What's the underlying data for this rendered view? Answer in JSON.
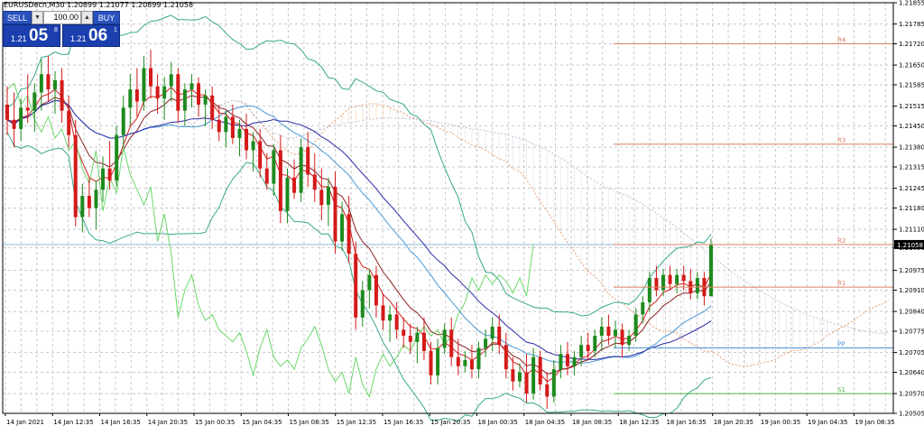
{
  "chart_title": "EURUSDecn,M30  1.20899 1.21077 1.20899 1.21058",
  "trade_panel": {
    "sell_label": "SELL",
    "buy_label": "BUY",
    "lot": "100.00",
    "sell_price": {
      "small": "1.21",
      "big": "05",
      "sup": "8"
    },
    "buy_price": {
      "small": "1.21",
      "big": "06",
      "sup": "1"
    }
  },
  "current_price_label": "1.21058",
  "chart_data": {
    "type": "candlestick",
    "symbol": "EURUSDecn",
    "timeframe": "M30",
    "ylim": [
      1.20505,
      1.21855
    ],
    "y_ticks": [
      "1.21855",
      "1.21785",
      "1.21720",
      "1.21650",
      "1.21585",
      "1.21515",
      "1.21450",
      "1.21380",
      "1.21315",
      "1.21245",
      "1.21180",
      "1.21110",
      "1.21050",
      "1.20975",
      "1.20910",
      "1.20840",
      "1.20775",
      "1.20705",
      "1.20640",
      "1.20570",
      "1.20505"
    ],
    "x_ticks": [
      "14 Jan 2021",
      "14 Jan 12:35",
      "14 Jan 16:35",
      "14 Jan 20:35",
      "15 Jan 00:35",
      "15 Jan 04:35",
      "15 Jan 08:35",
      "15 Jan 12:35",
      "15 Jan 16:35",
      "15 Jan 20:35",
      "18 Jan 00:35",
      "18 Jan 04:35",
      "18 Jan 08:35",
      "18 Jan 12:35",
      "18 Jan 16:35",
      "18 Jan 20:35",
      "19 Jan 00:35",
      "19 Jan 04:35",
      "19 Jan 08:35"
    ],
    "pivots": [
      {
        "name": "R4",
        "value": 1.2172
      },
      {
        "name": "R3",
        "value": 1.2139
      },
      {
        "name": "R2",
        "value": 1.2106
      },
      {
        "name": "R1",
        "value": 1.2092
      },
      {
        "name": "PP",
        "value": 1.2072
      },
      {
        "name": "S1",
        "value": 1.2057
      }
    ],
    "candles": [
      [
        1.2152,
        1.2158,
        1.2142,
        1.2147
      ],
      [
        1.2147,
        1.2156,
        1.2138,
        1.2144
      ],
      [
        1.2144,
        1.2154,
        1.214,
        1.2151
      ],
      [
        1.2151,
        1.2162,
        1.2146,
        1.215
      ],
      [
        1.215,
        1.2159,
        1.2143,
        1.2156
      ],
      [
        1.2156,
        1.2167,
        1.215,
        1.2162
      ],
      [
        1.2162,
        1.2168,
        1.2153,
        1.2157
      ],
      [
        1.2157,
        1.2163,
        1.2149,
        1.216
      ],
      [
        1.216,
        1.2164,
        1.2146,
        1.215
      ],
      [
        1.215,
        1.2155,
        1.2138,
        1.2142
      ],
      [
        1.2142,
        1.2147,
        1.2112,
        1.2115
      ],
      [
        1.2115,
        1.2126,
        1.211,
        1.2122
      ],
      [
        1.2122,
        1.2128,
        1.2115,
        1.2118
      ],
      [
        1.2118,
        1.2127,
        1.2111,
        1.2124
      ],
      [
        1.2124,
        1.2135,
        1.212,
        1.2131
      ],
      [
        1.2131,
        1.214,
        1.2124,
        1.2127
      ],
      [
        1.2127,
        1.2145,
        1.2125,
        1.2142
      ],
      [
        1.2142,
        1.2155,
        1.2138,
        1.2151
      ],
      [
        1.2151,
        1.2162,
        1.2145,
        1.2157
      ],
      [
        1.2157,
        1.2164,
        1.2148,
        1.2153
      ],
      [
        1.2153,
        1.2168,
        1.215,
        1.2164
      ],
      [
        1.2164,
        1.217,
        1.2154,
        1.2158
      ],
      [
        1.2158,
        1.2162,
        1.2149,
        1.2154
      ],
      [
        1.2154,
        1.2161,
        1.2147,
        1.2158
      ],
      [
        1.2158,
        1.2166,
        1.2153,
        1.2162
      ],
      [
        1.2162,
        1.2164,
        1.2146,
        1.215
      ],
      [
        1.215,
        1.2159,
        1.2145,
        1.2157
      ],
      [
        1.2157,
        1.2162,
        1.2151,
        1.2159
      ],
      [
        1.2159,
        1.2161,
        1.2148,
        1.2152
      ],
      [
        1.2152,
        1.2157,
        1.2145,
        1.2155
      ],
      [
        1.2155,
        1.2158,
        1.2144,
        1.2147
      ],
      [
        1.2147,
        1.2152,
        1.214,
        1.2143
      ],
      [
        1.2143,
        1.215,
        1.2138,
        1.2148
      ],
      [
        1.2148,
        1.2152,
        1.2139,
        1.2141
      ],
      [
        1.2141,
        1.2147,
        1.2135,
        1.2144
      ],
      [
        1.2144,
        1.2149,
        1.2134,
        1.2137
      ],
      [
        1.2137,
        1.2143,
        1.213,
        1.214
      ],
      [
        1.214,
        1.2144,
        1.2128,
        1.2131
      ],
      [
        1.2131,
        1.2136,
        1.2124,
        1.2126
      ],
      [
        1.2126,
        1.2139,
        1.2122,
        1.2137
      ],
      [
        1.2137,
        1.2142,
        1.2113,
        1.2117
      ],
      [
        1.2117,
        1.2131,
        1.2113,
        1.2128
      ],
      [
        1.2128,
        1.2134,
        1.2121,
        1.2123
      ],
      [
        1.2123,
        1.2141,
        1.212,
        1.2138
      ],
      [
        1.2138,
        1.2143,
        1.2125,
        1.2129
      ],
      [
        1.2129,
        1.2136,
        1.212,
        1.2124
      ],
      [
        1.2124,
        1.2131,
        1.2114,
        1.2119
      ],
      [
        1.2119,
        1.2128,
        1.2112,
        1.2125
      ],
      [
        1.2125,
        1.213,
        1.2103,
        1.2107
      ],
      [
        1.2107,
        1.212,
        1.2104,
        1.2116
      ],
      [
        1.2116,
        1.2122,
        1.21,
        1.2103
      ],
      [
        1.2103,
        1.2107,
        1.2078,
        1.2082
      ],
      [
        1.2082,
        1.2094,
        1.2079,
        1.2091
      ],
      [
        1.2091,
        1.2098,
        1.2085,
        1.2096
      ],
      [
        1.2096,
        1.2099,
        1.2082,
        1.2086
      ],
      [
        1.2086,
        1.209,
        1.2078,
        1.2081
      ],
      [
        1.2081,
        1.2086,
        1.2074,
        1.2083
      ],
      [
        1.2083,
        1.2087,
        1.2075,
        1.2078
      ],
      [
        1.2078,
        1.2082,
        1.2072,
        1.2076
      ],
      [
        1.2076,
        1.208,
        1.207,
        1.2074
      ],
      [
        1.2074,
        1.2079,
        1.2067,
        1.2077
      ],
      [
        1.2077,
        1.2082,
        1.2068,
        1.2071
      ],
      [
        1.2071,
        1.2074,
        1.206,
        1.2063
      ],
      [
        1.2063,
        1.2075,
        1.206,
        1.2072
      ],
      [
        1.2072,
        1.208,
        1.207,
        1.2078
      ],
      [
        1.2078,
        1.2082,
        1.2066,
        1.2069
      ],
      [
        1.2069,
        1.2075,
        1.2063,
        1.2066
      ],
      [
        1.2066,
        1.2071,
        1.2064,
        1.2068
      ],
      [
        1.2068,
        1.2073,
        1.2062,
        1.2065
      ],
      [
        1.2065,
        1.2074,
        1.2062,
        1.2072
      ],
      [
        1.2072,
        1.2078,
        1.2069,
        1.2075
      ],
      [
        1.2075,
        1.2082,
        1.2071,
        1.2079
      ],
      [
        1.2079,
        1.2083,
        1.207,
        1.2073
      ],
      [
        1.2073,
        1.2077,
        1.2062,
        1.2065
      ],
      [
        1.2065,
        1.2069,
        1.2058,
        1.2061
      ],
      [
        1.2061,
        1.2067,
        1.2059,
        1.2064
      ],
      [
        1.2064,
        1.207,
        1.2054,
        1.2057
      ],
      [
        1.2057,
        1.2072,
        1.2055,
        1.2069
      ],
      [
        1.2069,
        1.2071,
        1.2058,
        1.206
      ],
      [
        1.206,
        1.2064,
        1.2052,
        1.2056
      ],
      [
        1.2056,
        1.2068,
        1.2054,
        1.2065
      ],
      [
        1.2065,
        1.2073,
        1.2062,
        1.207
      ],
      [
        1.207,
        1.2074,
        1.2063,
        1.2066
      ],
      [
        1.2066,
        1.2071,
        1.2063,
        1.2069
      ],
      [
        1.2069,
        1.2076,
        1.2066,
        1.2073
      ],
      [
        1.2073,
        1.2077,
        1.2068,
        1.2071
      ],
      [
        1.2071,
        1.2078,
        1.2069,
        1.2076
      ],
      [
        1.2076,
        1.2082,
        1.2071,
        1.2079
      ],
      [
        1.2079,
        1.2083,
        1.2073,
        1.2076
      ],
      [
        1.2076,
        1.2081,
        1.2072,
        1.2078
      ],
      [
        1.2078,
        1.208,
        1.2069,
        1.2073
      ],
      [
        1.2073,
        1.2078,
        1.2071,
        1.2076
      ],
      [
        1.2076,
        1.2085,
        1.2074,
        1.2083
      ],
      [
        1.2083,
        1.2089,
        1.208,
        1.2087
      ],
      [
        1.2087,
        1.2097,
        1.2084,
        1.2095
      ],
      [
        1.2095,
        1.2099,
        1.2089,
        1.2091
      ],
      [
        1.2091,
        1.2098,
        1.2089,
        1.2096
      ],
      [
        1.2096,
        1.2099,
        1.2091,
        1.2093
      ],
      [
        1.2093,
        1.2098,
        1.209,
        1.2096
      ],
      [
        1.2096,
        1.2099,
        1.2091,
        1.2094
      ],
      [
        1.2094,
        1.2098,
        1.2088,
        1.209
      ],
      [
        1.209,
        1.2097,
        1.2088,
        1.2095
      ],
      [
        1.2095,
        1.2097,
        1.2086,
        1.2089
      ],
      [
        1.2089,
        1.2108,
        1.2089,
        1.2106
      ]
    ]
  }
}
